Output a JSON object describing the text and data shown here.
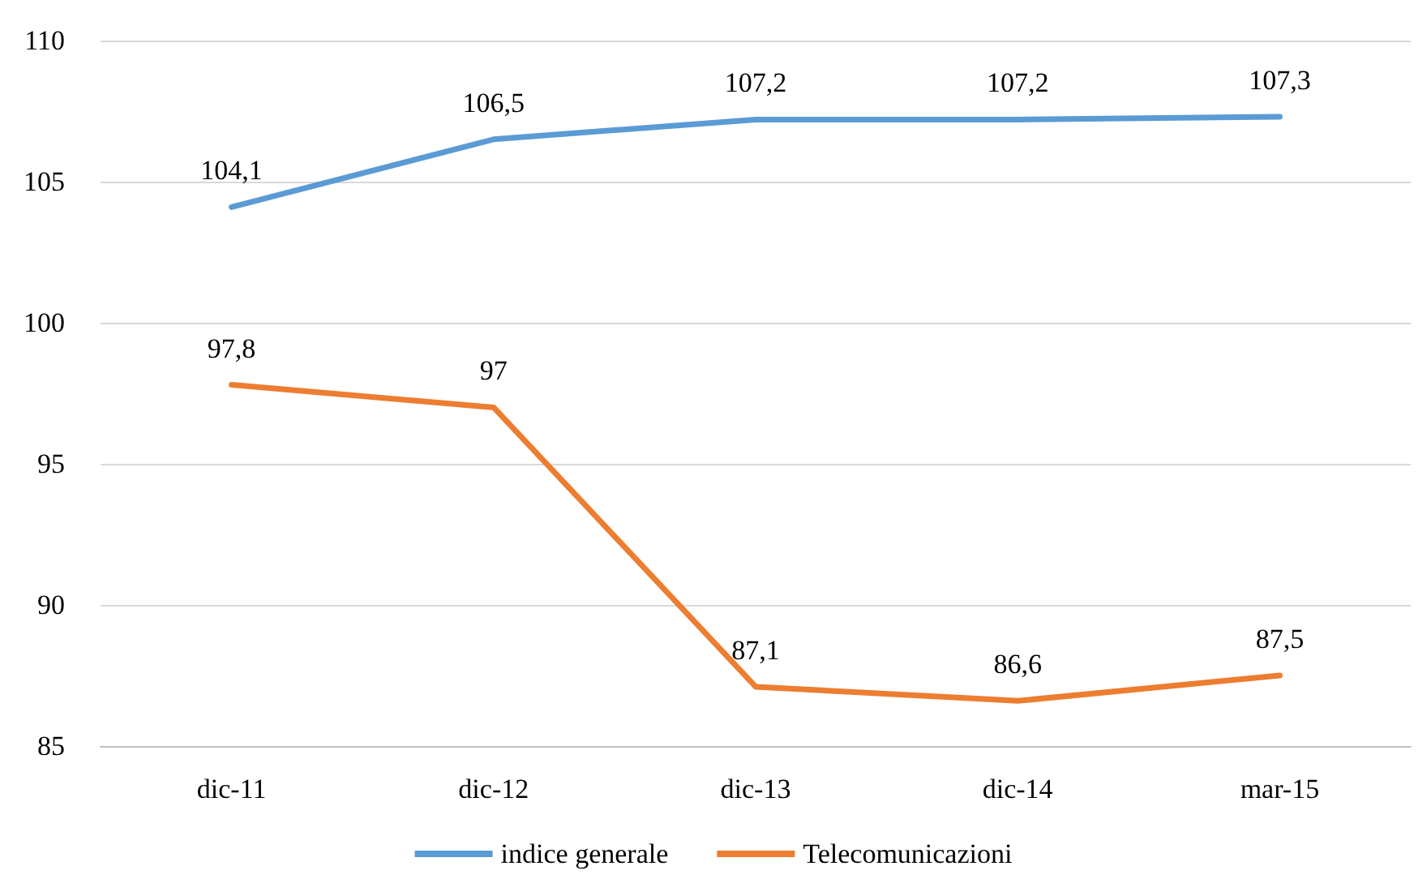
{
  "chart_data": {
    "type": "line",
    "categories": [
      "dic-11",
      "dic-12",
      "dic-13",
      "dic-14",
      "mar-15"
    ],
    "series": [
      {
        "name": "indice generale",
        "color": "#5b9bd5",
        "values": [
          104.1,
          106.5,
          107.2,
          107.2,
          107.3
        ],
        "value_labels": [
          "104,1",
          "106,5",
          "107,2",
          "107,2",
          "107,3"
        ]
      },
      {
        "name": "Telecomunicazioni",
        "color": "#ed7d31",
        "values": [
          97.8,
          97,
          87.1,
          86.6,
          87.5
        ],
        "value_labels": [
          "97,8",
          "97",
          "87,1",
          "86,6",
          "87,5"
        ]
      }
    ],
    "ylim": [
      85,
      110
    ],
    "yticks": [
      85,
      90,
      95,
      100,
      105,
      110
    ],
    "grid": "y",
    "legend": "bottom",
    "marker": "none",
    "line_style": "solid"
  }
}
